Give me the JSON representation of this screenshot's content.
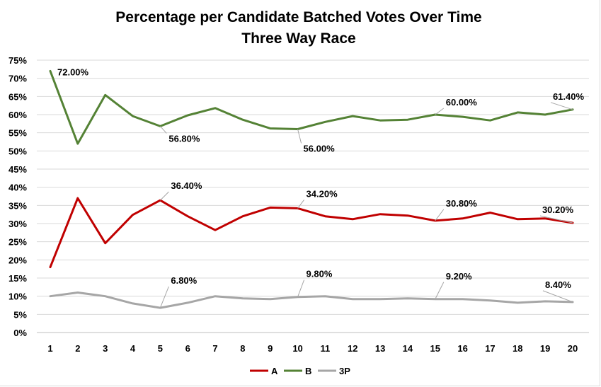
{
  "chart_data": {
    "type": "line",
    "title": "Percentage per Candidate Batched Votes Over Time",
    "subtitle": "Three Way Race",
    "xlabel": "",
    "ylabel": "",
    "x": [
      1,
      2,
      3,
      4,
      5,
      6,
      7,
      8,
      9,
      10,
      11,
      12,
      13,
      14,
      15,
      16,
      17,
      18,
      19,
      20
    ],
    "xtick_labels": [
      "1",
      "2",
      "3",
      "4",
      "5",
      "6",
      "7",
      "8",
      "9",
      "10",
      "11",
      "12",
      "13",
      "14",
      "15",
      "16",
      "17",
      "18",
      "19",
      "20"
    ],
    "ylim": [
      0,
      75
    ],
    "ytick_values": [
      0,
      5,
      10,
      15,
      20,
      25,
      30,
      35,
      40,
      45,
      50,
      55,
      60,
      65,
      70,
      75
    ],
    "ytick_labels": [
      "0%",
      "5%",
      "10%",
      "15%",
      "20%",
      "25%",
      "30%",
      "35%",
      "40%",
      "45%",
      "50%",
      "55%",
      "60%",
      "65%",
      "70%",
      "75%"
    ],
    "grid": true,
    "legend_position": "bottom",
    "series": [
      {
        "name": "A",
        "color": "#c00000",
        "values": [
          18.0,
          37.0,
          24.6,
          32.4,
          36.4,
          32.0,
          28.2,
          32.0,
          34.4,
          34.2,
          32.0,
          31.2,
          32.6,
          32.2,
          30.8,
          31.4,
          33.0,
          31.2,
          31.4,
          30.2
        ],
        "labels": [
          {
            "x": 5,
            "text": "36.40%"
          },
          {
            "x": 10,
            "text": "34.20%"
          },
          {
            "x": 15,
            "text": "30.80%"
          },
          {
            "x": 20,
            "text": "30.20%"
          }
        ]
      },
      {
        "name": "B",
        "color": "#548235",
        "values": [
          72.0,
          52.0,
          65.4,
          59.6,
          56.8,
          59.8,
          61.8,
          58.6,
          56.2,
          56.0,
          58.0,
          59.6,
          58.4,
          58.6,
          60.0,
          59.4,
          58.4,
          60.6,
          60.0,
          61.4
        ],
        "labels": [
          {
            "x": 1,
            "text": "72.00%"
          },
          {
            "x": 5,
            "text": "56.80%"
          },
          {
            "x": 10,
            "text": "56.00%"
          },
          {
            "x": 15,
            "text": "60.00%"
          },
          {
            "x": 20,
            "text": "61.40%"
          }
        ]
      },
      {
        "name": "3P",
        "color": "#a6a6a6",
        "values": [
          10.0,
          11.0,
          10.0,
          8.0,
          6.8,
          8.2,
          10.0,
          9.4,
          9.2,
          9.8,
          10.0,
          9.2,
          9.2,
          9.4,
          9.2,
          9.2,
          8.8,
          8.2,
          8.6,
          8.4
        ],
        "labels": [
          {
            "x": 5,
            "text": "6.80%"
          },
          {
            "x": 10,
            "text": "9.80%"
          },
          {
            "x": 15,
            "text": "9.20%"
          },
          {
            "x": 20,
            "text": "8.40%"
          }
        ]
      }
    ]
  }
}
